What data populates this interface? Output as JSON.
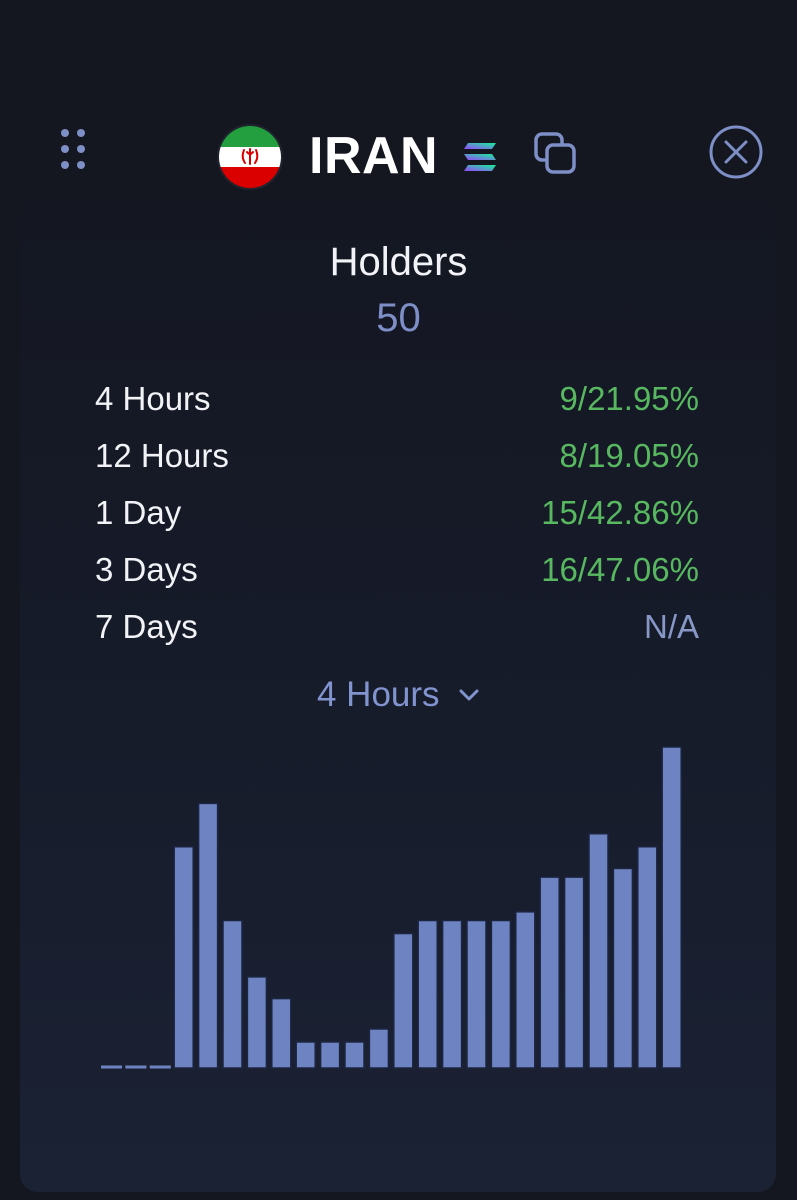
{
  "header": {
    "token_name": "IRAN",
    "icons": {
      "menu": "grip-dots-icon",
      "flag": "iran-flag-icon",
      "chain": "solana-icon",
      "copy": "copy-icon",
      "close": "close-circle-icon"
    }
  },
  "holders": {
    "title": "Holders",
    "count": "50"
  },
  "stats": [
    {
      "label": "4 Hours",
      "value": "9/21.95%",
      "status": "positive"
    },
    {
      "label": "12 Hours",
      "value": "8/19.05%",
      "status": "positive"
    },
    {
      "label": "1 Day",
      "value": "15/42.86%",
      "status": "positive"
    },
    {
      "label": "3 Days",
      "value": "16/47.06%",
      "status": "positive"
    },
    {
      "label": "7 Days",
      "value": "N/A",
      "status": "na"
    }
  ],
  "period_selector": {
    "selected": "4 Hours"
  },
  "colors": {
    "background": "#151720",
    "accent_blue": "#7d8fc6",
    "positive_green": "#58b860",
    "bar_fill": "#6d83c2",
    "bar_stroke": "#1c2540"
  },
  "chart_data": {
    "type": "bar",
    "values": [
      0,
      0,
      0,
      51,
      61,
      34,
      21,
      16,
      6,
      6,
      6,
      9,
      31,
      34,
      34,
      34,
      34,
      36,
      44,
      44,
      54,
      46,
      51,
      74
    ],
    "ylim": [
      0,
      74
    ]
  }
}
